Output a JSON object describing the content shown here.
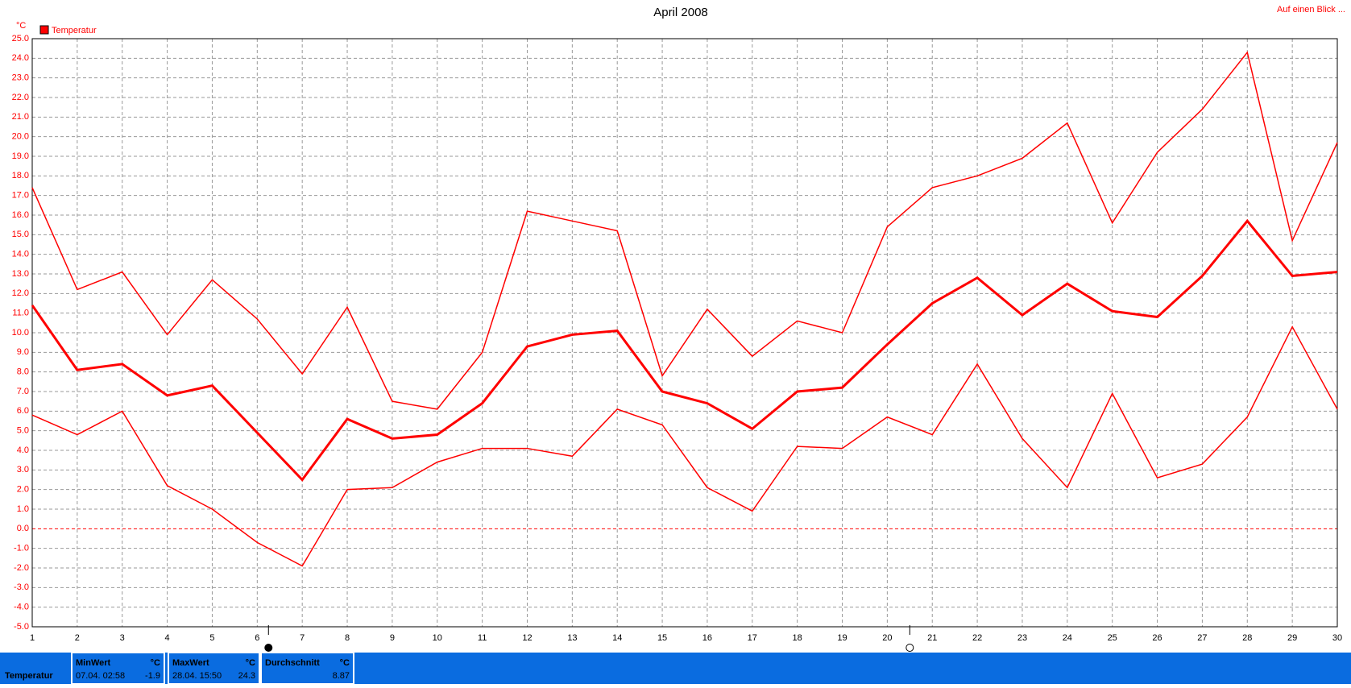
{
  "chart_data": {
    "type": "line",
    "title": "April 2008",
    "y_unit": "°C",
    "link": "Auf einen Blick ...",
    "legend": {
      "label": "Temperatur",
      "color": "#ff0000"
    },
    "x": [
      1,
      2,
      3,
      4,
      5,
      6,
      7,
      8,
      9,
      10,
      11,
      12,
      13,
      14,
      15,
      16,
      17,
      18,
      19,
      20,
      21,
      22,
      23,
      24,
      25,
      26,
      27,
      28,
      29,
      30
    ],
    "series": [
      {
        "color": "#ff0000",
        "line_width": 1.5,
        "values": [
          17.4,
          12.2,
          13.1,
          9.9,
          12.7,
          10.7,
          7.9,
          11.3,
          6.5,
          6.1,
          9.0,
          16.2,
          15.7,
          15.2,
          7.8,
          11.2,
          8.8,
          10.6,
          10.0,
          15.4,
          17.4,
          18.0,
          18.9,
          20.7,
          15.6,
          19.2,
          21.4,
          24.3,
          14.7,
          19.7
        ]
      },
      {
        "color": "#ff0000",
        "line_width": 3,
        "values": [
          11.4,
          8.1,
          8.4,
          6.8,
          7.3,
          4.9,
          2.5,
          5.6,
          4.6,
          4.8,
          6.4,
          9.3,
          9.9,
          10.1,
          7.0,
          6.4,
          5.1,
          7.0,
          7.2,
          9.4,
          11.5,
          12.8,
          10.9,
          12.5,
          11.1,
          10.8,
          12.9,
          15.7,
          12.9,
          13.1
        ]
      },
      {
        "color": "#ff0000",
        "line_width": 1.5,
        "values": [
          5.8,
          4.8,
          6.0,
          2.2,
          1.0,
          -0.7,
          -1.9,
          2.0,
          2.1,
          3.4,
          4.1,
          4.1,
          3.7,
          6.1,
          5.3,
          2.1,
          0.9,
          4.2,
          4.1,
          5.7,
          4.8,
          8.4,
          4.6,
          2.1,
          6.9,
          2.6,
          3.3,
          5.7,
          10.3,
          6.1
        ]
      }
    ],
    "xlim": [
      1,
      30
    ],
    "xticks": [
      1,
      2,
      3,
      4,
      5,
      6,
      7,
      8,
      9,
      10,
      11,
      12,
      13,
      14,
      15,
      16,
      17,
      18,
      19,
      20,
      21,
      22,
      23,
      24,
      25,
      26,
      27,
      28,
      29,
      30
    ],
    "ylim": [
      -5,
      25
    ],
    "yticks": [
      {
        "value": -5,
        "label": "-5.0"
      },
      {
        "value": -4,
        "label": "-4.0"
      },
      {
        "value": -3,
        "label": "-3.0"
      },
      {
        "value": -2,
        "label": "-2.0"
      },
      {
        "value": -1,
        "label": "-1.0"
      },
      {
        "value": 0,
        "label": "0.0"
      },
      {
        "value": 1,
        "label": "1.0"
      },
      {
        "value": 2,
        "label": "2.0"
      },
      {
        "value": 3,
        "label": "3.0"
      },
      {
        "value": 4,
        "label": "4.0"
      },
      {
        "value": 5,
        "label": "5.0"
      },
      {
        "value": 6,
        "label": "6.0"
      },
      {
        "value": 7,
        "label": "7.0"
      },
      {
        "value": 8,
        "label": "8.0"
      },
      {
        "value": 9,
        "label": "9.0"
      },
      {
        "value": 10,
        "label": "10.0"
      },
      {
        "value": 11,
        "label": "11.0"
      },
      {
        "value": 12,
        "label": "12.0"
      },
      {
        "value": 13,
        "label": "13.0"
      },
      {
        "value": 14,
        "label": "14.0"
      },
      {
        "value": 15,
        "label": "15.0"
      },
      {
        "value": 16,
        "label": "16.0"
      },
      {
        "value": 17,
        "label": "17.0"
      },
      {
        "value": 18,
        "label": "18.0"
      },
      {
        "value": 19,
        "label": "19.0"
      },
      {
        "value": 20,
        "label": "20.0"
      },
      {
        "value": 21,
        "label": "21.0"
      },
      {
        "value": 22,
        "label": "22.0"
      },
      {
        "value": 23,
        "label": "23.0"
      },
      {
        "value": 24,
        "label": "24.0"
      },
      {
        "value": 25,
        "label": "25.0"
      }
    ],
    "grid": true,
    "zero_line_color": "#ff0000",
    "moon_phases": [
      {
        "x": 6.25,
        "phase": "new"
      },
      {
        "x": 20.5,
        "phase": "full"
      }
    ]
  },
  "summary": {
    "label": "Temperatur",
    "boxes": [
      {
        "title": "MinWert",
        "unit": "°C",
        "when": "07.04.  02:58",
        "value": -1.9
      },
      {
        "title": "MaxWert",
        "unit": "°C",
        "when": "28.04.  15:50",
        "value": 24.3
      },
      {
        "title": "Durchschnitt",
        "unit": "°C",
        "value": 8.87
      }
    ]
  }
}
